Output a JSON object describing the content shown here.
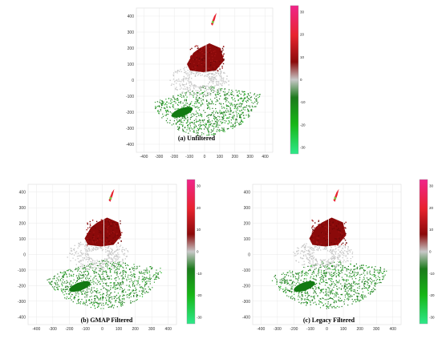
{
  "figure": {
    "panels": [
      {
        "id": "a",
        "caption": "(a) Unfiltered",
        "x_ticks": [
          "-400",
          "-300",
          "-200",
          "-100",
          "0",
          "100",
          "200",
          "300",
          "400"
        ],
        "y_ticks": [
          "400",
          "300",
          "200",
          "100",
          "0",
          "-100",
          "-200",
          "-300",
          "-400"
        ],
        "colorbar_ticks": [
          "30",
          "20",
          "10",
          "0",
          "-10",
          "-20",
          "-30"
        ]
      },
      {
        "id": "b",
        "caption": "(b) GMAP Filtered",
        "x_ticks": [
          "-400",
          "-300",
          "-200",
          "-100",
          "0",
          "100",
          "200",
          "300",
          "400"
        ],
        "y_ticks": [
          "400",
          "300",
          "200",
          "100",
          "0",
          "-100",
          "-200",
          "-300",
          "-400"
        ],
        "colorbar_ticks": [
          "30",
          "20",
          "10",
          "0",
          "-10",
          "-20",
          "-30"
        ]
      },
      {
        "id": "c",
        "caption": "(c) Legacy Filtered",
        "x_ticks": [
          "-400",
          "-300",
          "-200",
          "-100",
          "0",
          "100",
          "200",
          "300",
          "400"
        ],
        "y_ticks": [
          "400",
          "300",
          "200",
          "100",
          "0",
          "-100",
          "-200",
          "-300",
          "-400"
        ],
        "colorbar_ticks": [
          "30",
          "20",
          "10",
          "0",
          "-10",
          "-20",
          "-30"
        ]
      }
    ],
    "colormap": {
      "positive_high": "#f0258a",
      "positive_mid": "#e8232f",
      "positive_low": "#8b0a0a",
      "zero": "#c8c8c8",
      "negative_low": "#1b7a1b",
      "negative_mid": "#16b716",
      "negative_high": "#2ee88a"
    }
  }
}
